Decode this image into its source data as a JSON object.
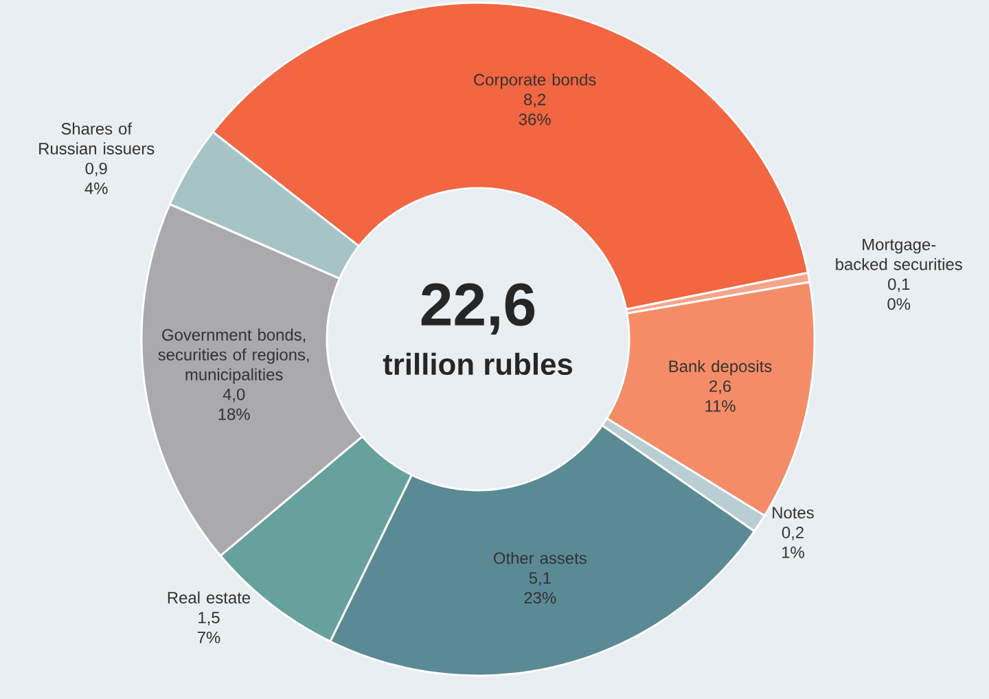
{
  "chart_data": {
    "type": "donut",
    "title": "22,6",
    "subtitle": "trillion rubles",
    "categories": [
      "Corporate bonds",
      "Mortgage-backed securities",
      "Bank deposits",
      "Notes",
      "Other assets",
      "Real estate",
      "Government bonds, securities of regions, municipalities",
      "Shares of Russian issuers"
    ],
    "values": [
      8.2,
      0.1,
      2.6,
      0.2,
      5.1,
      1.5,
      4.0,
      0.9
    ],
    "colors": [
      "#f26641",
      "#f5a68b",
      "#f58c68",
      "#b8ced3",
      "#5a8a94",
      "#66a19e",
      "#a9a9ae",
      "#a6c4c5"
    ],
    "value_labels": [
      "8,2",
      "0,1",
      "2,6",
      "0,2",
      "5,1",
      "1,5",
      "4,0",
      "0,9"
    ],
    "annotations": [
      "36%",
      "0%",
      "11%",
      "1%",
      "23%",
      "7%",
      "18%",
      "4%"
    ]
  }
}
